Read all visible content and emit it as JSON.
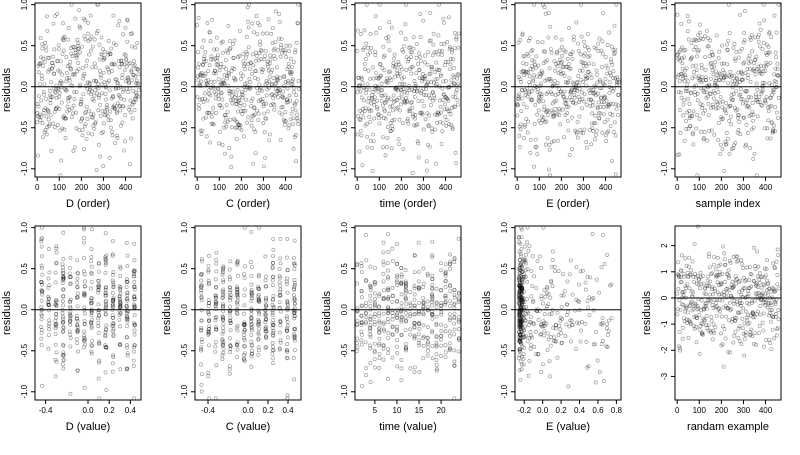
{
  "chart_data": [
    {
      "type": "scatter",
      "xlabel": "D (order)",
      "ylabel": "residuals",
      "xticks": [
        "0",
        "100",
        "200",
        "300",
        "400"
      ],
      "yticks": [
        "-1.0",
        "-0.5",
        "0.0",
        "0.5",
        "1.0"
      ],
      "xlim": [
        -10,
        470
      ],
      "ylim": [
        -1.1,
        1.02
      ],
      "refline_y": 0,
      "n_points": 450,
      "spread": 0.38,
      "pattern": "uniform-x",
      "seed": 11,
      "grid": false,
      "legend": "none"
    },
    {
      "type": "scatter",
      "xlabel": "C (order)",
      "ylabel": "residuals",
      "xticks": [
        "0",
        "100",
        "200",
        "300",
        "400"
      ],
      "yticks": [
        "-1.0",
        "-0.5",
        "0.0",
        "0.5",
        "1.0"
      ],
      "xlim": [
        -10,
        470
      ],
      "ylim": [
        -1.1,
        1.02
      ],
      "refline_y": 0,
      "n_points": 450,
      "spread": 0.38,
      "pattern": "uniform-x",
      "seed": 23,
      "grid": false,
      "legend": "none"
    },
    {
      "type": "scatter",
      "xlabel": "time (order)",
      "ylabel": "residuals",
      "xticks": [
        "0",
        "100",
        "200",
        "300",
        "400"
      ],
      "yticks": [
        "-1.0",
        "-0.5",
        "0.0",
        "0.5",
        "1.0"
      ],
      "xlim": [
        -10,
        470
      ],
      "ylim": [
        -1.1,
        1.02
      ],
      "refline_y": 0,
      "n_points": 450,
      "spread": 0.38,
      "pattern": "uniform-x",
      "seed": 37,
      "grid": false,
      "legend": "none"
    },
    {
      "type": "scatter",
      "xlabel": "E (order)",
      "ylabel": "residuals",
      "xticks": [
        "0",
        "100",
        "200",
        "300",
        "400"
      ],
      "yticks": [
        "-1.0",
        "-0.5",
        "0.0",
        "0.5",
        "1.0"
      ],
      "xlim": [
        -10,
        470
      ],
      "ylim": [
        -1.1,
        1.02
      ],
      "refline_y": 0,
      "n_points": 450,
      "spread": 0.38,
      "pattern": "uniform-x",
      "seed": 41,
      "grid": false,
      "legend": "none"
    },
    {
      "type": "scatter",
      "xlabel": "sample index",
      "ylabel": "residuals",
      "xticks": [
        "0",
        "100",
        "200",
        "300",
        "400"
      ],
      "yticks": [
        "-1.0",
        "-0.5",
        "0.0",
        "0.5",
        "1.0"
      ],
      "xlim": [
        -10,
        470
      ],
      "ylim": [
        -1.1,
        1.02
      ],
      "refline_y": 0,
      "n_points": 450,
      "spread": 0.38,
      "pattern": "uniform-x",
      "seed": 53,
      "grid": false,
      "legend": "none"
    },
    {
      "type": "scatter",
      "xlabel": "D (value)",
      "ylabel": "residuals",
      "xticks": [
        "-0.4",
        "0.0",
        "0.2",
        "0.4"
      ],
      "yticks": [
        "-1.0",
        "-0.5",
        "0.0",
        "0.5",
        "1.0"
      ],
      "xlim": [
        -0.5,
        0.5
      ],
      "ylim": [
        -1.1,
        1.02
      ],
      "refline_y": 0,
      "n_points": 450,
      "spread": 0.38,
      "pattern": "vertical-stripes",
      "seed": 61,
      "grid": false,
      "legend": "none"
    },
    {
      "type": "scatter",
      "xlabel": "C (value)",
      "ylabel": "residuals",
      "xticks": [
        "-0.4",
        "0.0",
        "0.2",
        "0.4"
      ],
      "yticks": [
        "-1.0",
        "-0.5",
        "0.0",
        "0.5",
        "1.0"
      ],
      "xlim": [
        -0.53,
        0.53
      ],
      "ylim": [
        -1.1,
        1.02
      ],
      "refline_y": 0,
      "n_points": 450,
      "spread": 0.38,
      "pattern": "vertical-stripes",
      "seed": 71,
      "grid": false,
      "legend": "none"
    },
    {
      "type": "scatter",
      "xlabel": "time (value)",
      "ylabel": "residuals",
      "xticks": [
        "5",
        "10",
        "15",
        "20"
      ],
      "yticks": [
        "-1.0",
        "-0.5",
        "0.0",
        "0.5",
        "1.0"
      ],
      "xlim": [
        0.5,
        24.5
      ],
      "ylim": [
        -1.1,
        1.02
      ],
      "refline_y": 0,
      "n_points": 450,
      "spread": 0.38,
      "pattern": "integer-stripes",
      "seed": 83,
      "grid": false,
      "legend": "none"
    },
    {
      "type": "scatter",
      "xlabel": "E (value)",
      "ylabel": "residuals",
      "xticks": [
        "-0.2",
        "0.0",
        "0.2",
        "0.4",
        "0.6",
        "0.8"
      ],
      "yticks": [
        "-1.0",
        "-0.5",
        "0.0",
        "0.5",
        "1.0"
      ],
      "xlim": [
        -0.3,
        0.85
      ],
      "ylim": [
        -1.1,
        1.02
      ],
      "refline_y": 0,
      "n_points": 450,
      "spread": 0.38,
      "pattern": "right-skewed",
      "seed": 97,
      "grid": false,
      "legend": "none"
    },
    {
      "type": "scatter",
      "xlabel": "randam example",
      "ylabel": "residuals",
      "xticks": [
        "0",
        "100",
        "200",
        "300",
        "400"
      ],
      "yticks": [
        "-3",
        "-2",
        "-1",
        "0",
        "1",
        "2"
      ],
      "xlim": [
        -10,
        470
      ],
      "ylim": [
        -3.9,
        2.75
      ],
      "refline_y": 0,
      "n_points": 450,
      "spread": 0.9,
      "pattern": "uniform-x",
      "seed": 101,
      "grid": false,
      "legend": "none"
    }
  ]
}
